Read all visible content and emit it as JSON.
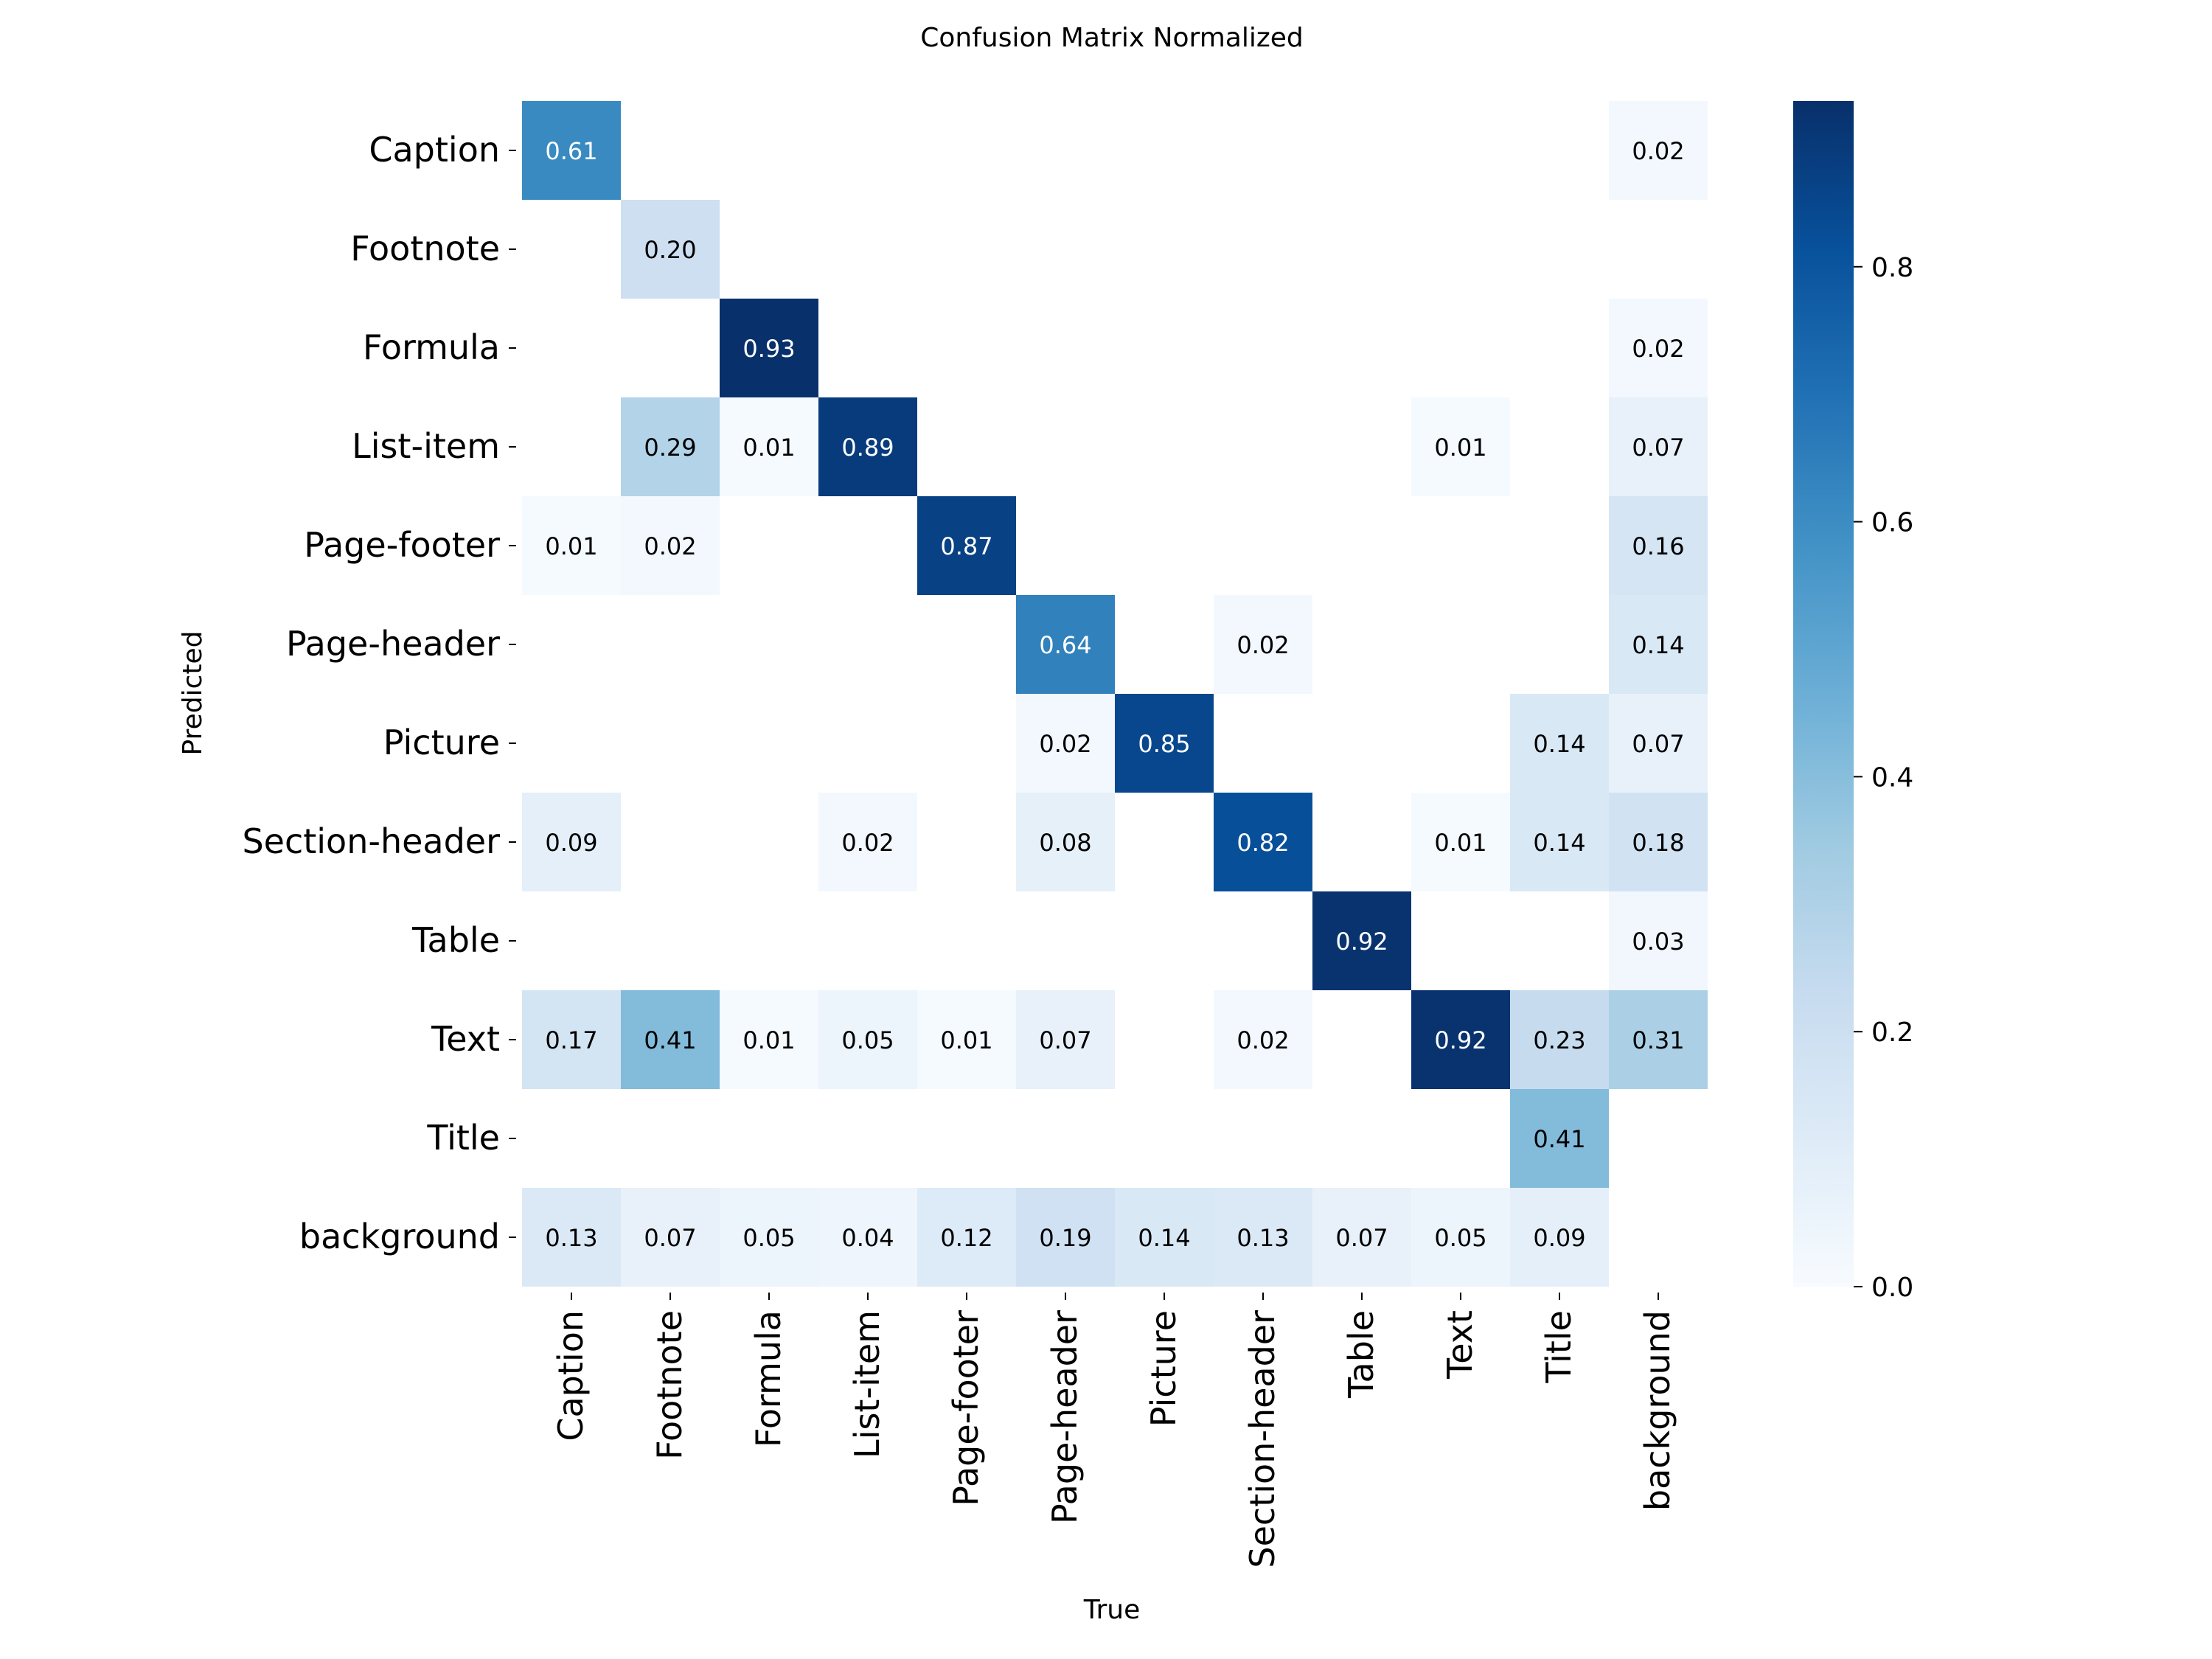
{
  "chart_data": {
    "type": "heatmap",
    "title": "Confusion Matrix Normalized",
    "xlabel": "True",
    "ylabel": "Predicted",
    "x_categories": [
      "Caption",
      "Footnote",
      "Formula",
      "List-item",
      "Page-footer",
      "Page-header",
      "Picture",
      "Section-header",
      "Table",
      "Text",
      "Title",
      "background"
    ],
    "y_categories": [
      "Caption",
      "Footnote",
      "Formula",
      "List-item",
      "Page-footer",
      "Page-header",
      "Picture",
      "Section-header",
      "Table",
      "Text",
      "Title",
      "background"
    ],
    "values": [
      [
        0.61,
        null,
        null,
        null,
        null,
        null,
        null,
        null,
        null,
        null,
        null,
        0.02
      ],
      [
        null,
        0.2,
        null,
        null,
        null,
        null,
        null,
        null,
        null,
        null,
        null,
        null
      ],
      [
        null,
        null,
        0.93,
        null,
        null,
        null,
        null,
        null,
        null,
        null,
        null,
        0.02
      ],
      [
        null,
        0.29,
        0.01,
        0.89,
        null,
        null,
        null,
        null,
        null,
        0.01,
        null,
        0.07
      ],
      [
        0.01,
        0.02,
        null,
        null,
        0.87,
        null,
        null,
        null,
        null,
        null,
        null,
        0.16
      ],
      [
        null,
        null,
        null,
        null,
        null,
        0.64,
        null,
        0.02,
        null,
        null,
        null,
        0.14
      ],
      [
        null,
        null,
        null,
        null,
        null,
        0.02,
        0.85,
        null,
        null,
        null,
        0.14,
        0.07
      ],
      [
        0.09,
        null,
        null,
        0.02,
        null,
        0.08,
        null,
        0.82,
        null,
        0.01,
        0.14,
        0.18
      ],
      [
        null,
        null,
        null,
        null,
        null,
        null,
        null,
        null,
        0.92,
        null,
        null,
        0.03
      ],
      [
        0.17,
        0.41,
        0.01,
        0.05,
        0.01,
        0.07,
        null,
        0.02,
        null,
        0.92,
        0.23,
        0.31
      ],
      [
        null,
        null,
        null,
        null,
        null,
        null,
        null,
        null,
        null,
        null,
        0.41,
        null
      ],
      [
        0.13,
        0.07,
        0.05,
        0.04,
        0.12,
        0.19,
        0.14,
        0.13,
        0.07,
        0.05,
        0.09,
        null
      ]
    ],
    "colorbar": {
      "colormap": "Blues",
      "range": [
        0.0,
        0.93
      ],
      "ticks": [
        0.0,
        0.2,
        0.4,
        0.6,
        0.8
      ],
      "tick_labels": [
        "0.0",
        "0.2",
        "0.4",
        "0.6",
        "0.8"
      ]
    },
    "annotation_format": "2 decimals",
    "grid": false
  }
}
